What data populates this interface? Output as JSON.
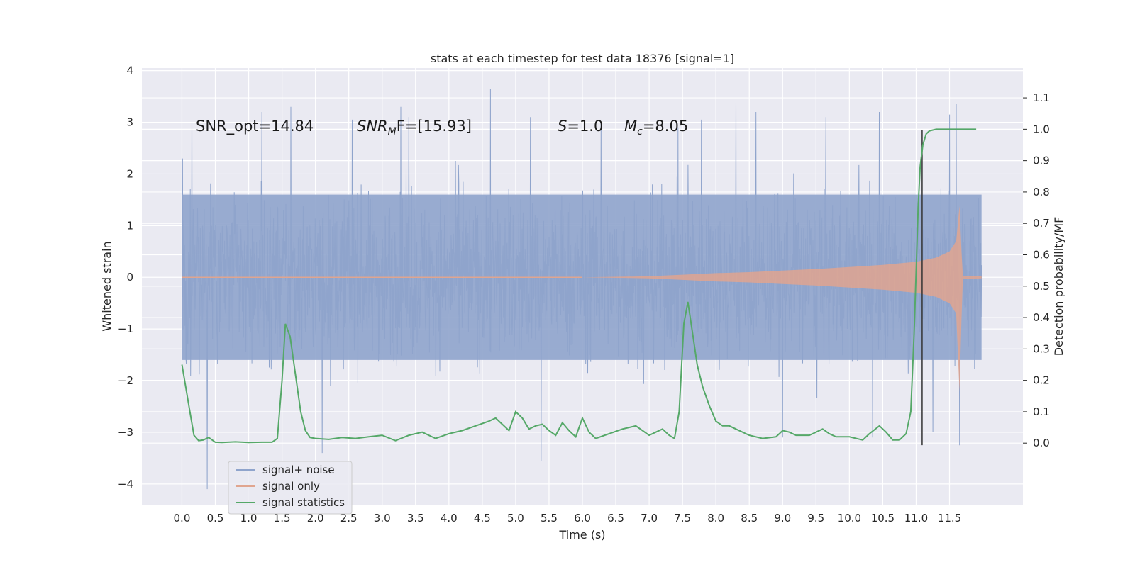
{
  "chart_data": {
    "type": "line",
    "title": "stats at each timestep for test data 18376 [signal=1]",
    "xlabel": "Time (s)",
    "ylabel_left": "Whitened strain",
    "ylabel_right": "Detection probability/MF",
    "xlim": [
      -0.6,
      12.6
    ],
    "ylim_left": [
      -4.4,
      4.05
    ],
    "ylim_right": [
      -0.196,
      1.195
    ],
    "xticks": [
      0.0,
      0.5,
      1.0,
      1.5,
      2.0,
      2.5,
      3.0,
      3.5,
      4.0,
      4.5,
      5.0,
      5.5,
      6.0,
      6.5,
      7.0,
      7.5,
      8.0,
      8.5,
      9.0,
      9.5,
      10.0,
      10.5,
      11.0,
      11.5
    ],
    "xtick_labels": [
      "0.0",
      "0.5",
      "1.0",
      "1.5",
      "2.0",
      "2.5",
      "3.0",
      "3.5",
      "4.0",
      "4.5",
      "5.0",
      "5.5",
      "6.0",
      "6.5",
      "7.0",
      "7.5",
      "8.0",
      "8.5",
      "9.0",
      "9.5",
      "10.0",
      "10.5",
      "11.0",
      "11.5"
    ],
    "yticks_left": [
      -4,
      -3,
      -2,
      -1,
      0,
      1,
      2,
      3,
      4
    ],
    "ytick_labels_left": [
      "−4",
      "−3",
      "−2",
      "−1",
      "0",
      "1",
      "2",
      "3",
      "4"
    ],
    "yticks_right": [
      0.0,
      0.1,
      0.2,
      0.3,
      0.4,
      0.5,
      0.6,
      0.7,
      0.8,
      0.9,
      1.0,
      1.1
    ],
    "ytick_labels_right": [
      "0.0",
      "0.1",
      "0.2",
      "0.3",
      "0.4",
      "0.5",
      "0.6",
      "0.7",
      "0.8",
      "0.9",
      "1.0",
      "1.1"
    ],
    "annotations": {
      "snr_opt": "SNR_opt=14.84",
      "snr_mf_main": "SNR",
      "snr_mf_sub": "M",
      "snr_mf_rest": "F=[15.93]",
      "s_italic": "S",
      "s_rest": "=1.0",
      "mc_main": "M",
      "mc_sub": "c",
      "mc_rest": "=8.05"
    },
    "legend": {
      "position": "lower-left",
      "entries": [
        "signal+ noise",
        "signal only",
        "signal statistics"
      ]
    },
    "colors": {
      "noise": "#8fa4cc",
      "signal": "#e0a58f",
      "stat": "#55a868",
      "vline": "#333333",
      "background": "#eaeaf2",
      "grid": "#ffffff"
    },
    "series": [
      {
        "name": "signal+ noise",
        "axis": "left",
        "description": "whitened strain noise band",
        "x_range": [
          0.0,
          11.98
        ],
        "typical_band": [
          -1.6,
          1.6
        ],
        "peaks": [
          {
            "x": 0.01,
            "y": 2.3
          },
          {
            "x": 0.15,
            "y": 3.05
          },
          {
            "x": 0.38,
            "y": -4.1
          },
          {
            "x": 1.2,
            "y": 3.2
          },
          {
            "x": 1.63,
            "y": 3.3
          },
          {
            "x": 2.1,
            "y": -3.4
          },
          {
            "x": 2.55,
            "y": 3.05
          },
          {
            "x": 3.28,
            "y": 3.3
          },
          {
            "x": 3.4,
            "y": 3.1
          },
          {
            "x": 4.62,
            "y": 3.65
          },
          {
            "x": 5.38,
            "y": -3.55
          },
          {
            "x": 5.22,
            "y": 3.1
          },
          {
            "x": 6.28,
            "y": 3.0
          },
          {
            "x": 7.78,
            "y": 3.05
          },
          {
            "x": 8.3,
            "y": 3.4
          },
          {
            "x": 8.6,
            "y": 3.2
          },
          {
            "x": 9.65,
            "y": 3.1
          },
          {
            "x": 10.45,
            "y": 3.2
          },
          {
            "x": 11.5,
            "y": 3.15
          },
          {
            "x": 11.6,
            "y": 3.35
          },
          {
            "x": 11.65,
            "y": -3.25
          },
          {
            "x": 10.35,
            "y": -3.1
          },
          {
            "x": 9.0,
            "y": -3.1
          },
          {
            "x": 11.25,
            "y": -3.0
          }
        ]
      },
      {
        "name": "signal only",
        "axis": "left",
        "description": "chirp envelope",
        "envelope_x": [
          0.0,
          6.0,
          7.0,
          7.5,
          8.0,
          8.5,
          9.0,
          9.5,
          10.0,
          10.5,
          11.0,
          11.3,
          11.5,
          11.6,
          11.65,
          11.68,
          11.7,
          11.98
        ],
        "envelope_y": [
          0.0,
          0.0,
          0.02,
          0.05,
          0.08,
          0.1,
          0.13,
          0.16,
          0.2,
          0.24,
          0.3,
          0.38,
          0.5,
          0.7,
          1.38,
          0.5,
          0.03,
          0.02
        ]
      },
      {
        "name": "signal statistics",
        "axis": "right",
        "x": [
          0.0,
          0.12,
          0.18,
          0.25,
          0.32,
          0.4,
          0.5,
          0.6,
          0.8,
          1.0,
          1.2,
          1.35,
          1.43,
          1.5,
          1.55,
          1.62,
          1.7,
          1.78,
          1.85,
          1.92,
          2.0,
          2.2,
          2.4,
          2.6,
          2.8,
          3.0,
          3.2,
          3.4,
          3.6,
          3.8,
          4.0,
          4.2,
          4.4,
          4.6,
          4.7,
          4.8,
          4.9,
          5.0,
          5.1,
          5.2,
          5.3,
          5.4,
          5.5,
          5.6,
          5.7,
          5.8,
          5.9,
          6.0,
          6.1,
          6.2,
          6.4,
          6.6,
          6.8,
          7.0,
          7.1,
          7.2,
          7.3,
          7.38,
          7.45,
          7.52,
          7.58,
          7.65,
          7.72,
          7.8,
          7.9,
          8.0,
          8.1,
          8.2,
          8.3,
          8.5,
          8.7,
          8.9,
          9.0,
          9.1,
          9.2,
          9.4,
          9.6,
          9.7,
          9.8,
          10.0,
          10.2,
          10.3,
          10.45,
          10.55,
          10.65,
          10.75,
          10.85,
          10.92,
          10.97,
          11.0,
          11.03,
          11.06,
          11.1,
          11.15,
          11.2,
          11.3,
          11.4,
          11.6,
          11.9
        ],
        "y": [
          0.25,
          0.1,
          0.025,
          0.008,
          0.01,
          0.018,
          0.003,
          0.002,
          0.004,
          0.002,
          0.003,
          0.003,
          0.015,
          0.2,
          0.38,
          0.34,
          0.22,
          0.1,
          0.04,
          0.018,
          0.015,
          0.012,
          0.018,
          0.015,
          0.02,
          0.025,
          0.008,
          0.025,
          0.035,
          0.015,
          0.03,
          0.04,
          0.055,
          0.07,
          0.08,
          0.06,
          0.04,
          0.1,
          0.08,
          0.045,
          0.055,
          0.06,
          0.04,
          0.025,
          0.065,
          0.04,
          0.02,
          0.08,
          0.035,
          0.015,
          0.03,
          0.045,
          0.055,
          0.025,
          0.035,
          0.045,
          0.025,
          0.015,
          0.1,
          0.38,
          0.45,
          0.35,
          0.25,
          0.18,
          0.12,
          0.07,
          0.055,
          0.055,
          0.045,
          0.025,
          0.015,
          0.02,
          0.04,
          0.035,
          0.025,
          0.025,
          0.045,
          0.03,
          0.02,
          0.02,
          0.01,
          0.03,
          0.055,
          0.035,
          0.01,
          0.01,
          0.03,
          0.1,
          0.35,
          0.55,
          0.75,
          0.88,
          0.95,
          0.985,
          0.995,
          1.0,
          1.0,
          1.0,
          1.0
        ]
      }
    ],
    "vline": {
      "x": 11.09,
      "y_bottom": -3.25,
      "y_top": 2.85
    }
  }
}
